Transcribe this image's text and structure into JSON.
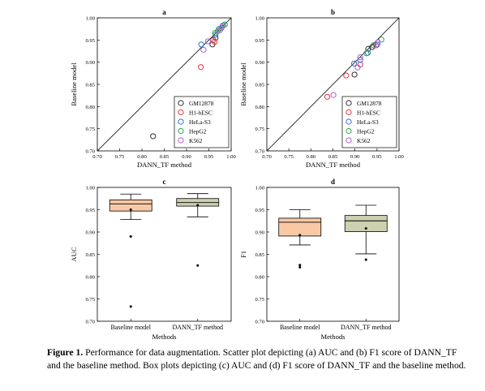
{
  "chart_data": [
    {
      "type": "scatter",
      "panel": "a",
      "xlabel": "DANN_TF method",
      "ylabel": "Baseline model",
      "xlim": [
        0.7,
        1.0
      ],
      "ylim": [
        0.7,
        1.0
      ],
      "ticks": [
        "0.70",
        "0.75",
        "0.80",
        "0.85",
        "0.90",
        "0.95",
        "1.00"
      ],
      "diagonal": true,
      "legend_position": "bottom-right",
      "series": [
        {
          "name": "GM12878",
          "color": "#303030",
          "points": [
            [
              0.825,
              0.733
            ],
            [
              0.958,
              0.94
            ],
            [
              0.965,
              0.955
            ]
          ]
        },
        {
          "name": "H1-hESC",
          "color": "#e8373b",
          "points": [
            [
              0.932,
              0.889
            ],
            [
              0.963,
              0.946
            ],
            [
              0.96,
              0.95
            ]
          ]
        },
        {
          "name": "HeLa-S3",
          "color": "#2f6fd6",
          "points": [
            [
              0.933,
              0.94
            ],
            [
              0.965,
              0.962
            ],
            [
              0.982,
              0.983
            ],
            [
              0.973,
              0.975
            ]
          ]
        },
        {
          "name": "HepG2",
          "color": "#2ea84a",
          "points": [
            [
              0.964,
              0.966
            ],
            [
              0.97,
              0.97
            ],
            [
              0.978,
              0.977
            ],
            [
              0.986,
              0.985
            ]
          ]
        },
        {
          "name": "K562",
          "color": "#b15ad9",
          "points": [
            [
              0.938,
              0.928
            ],
            [
              0.948,
              0.947
            ],
            [
              0.975,
              0.972
            ],
            [
              0.98,
              0.98
            ]
          ]
        }
      ]
    },
    {
      "type": "scatter",
      "panel": "b",
      "xlabel": "DANN_TF method",
      "ylabel": "Baseline model",
      "xlim": [
        0.7,
        1.0
      ],
      "ylim": [
        0.7,
        1.0
      ],
      "ticks": [
        "0.70",
        "0.75",
        "0.80",
        "0.85",
        "0.90",
        "0.95",
        "1.00"
      ],
      "diagonal": true,
      "legend_position": "bottom-right",
      "series": [
        {
          "name": "GM12878",
          "color": "#303030",
          "points": [
            [
              0.899,
              0.872
            ],
            [
              0.93,
              0.93
            ],
            [
              0.939,
              0.934
            ]
          ]
        },
        {
          "name": "H1-hESC",
          "color": "#e8373b",
          "points": [
            [
              0.837,
              0.822
            ],
            [
              0.88,
              0.87
            ],
            [
              0.912,
              0.895
            ],
            [
              0.948,
              0.938
            ]
          ]
        },
        {
          "name": "HeLa-S3",
          "color": "#2f6fd6",
          "points": [
            [
              0.898,
              0.897
            ],
            [
              0.912,
              0.905
            ],
            [
              0.929,
              0.921
            ],
            [
              0.951,
              0.94
            ]
          ]
        },
        {
          "name": "HepG2",
          "color": "#2ea84a",
          "points": [
            [
              0.926,
              0.92
            ],
            [
              0.942,
              0.938
            ],
            [
              0.96,
              0.951
            ]
          ]
        },
        {
          "name": "K562",
          "color": "#b15ad9",
          "points": [
            [
              0.851,
              0.826
            ],
            [
              0.906,
              0.888
            ],
            [
              0.912,
              0.911
            ],
            [
              0.952,
              0.945
            ]
          ]
        }
      ]
    },
    {
      "type": "box",
      "panel": "c",
      "xlabel": "Methods",
      "ylabel": "AUC",
      "ylim": [
        0.7,
        1.0
      ],
      "ticks": [
        "0.70",
        "0.75",
        "0.80",
        "0.85",
        "0.90",
        "0.95",
        "1.00"
      ],
      "categories": [
        "Baseline model",
        "DANN_TF method"
      ],
      "boxes": [
        {
          "color": "#f9c9a6",
          "q1": 0.947,
          "median": 0.963,
          "q3": 0.972,
          "whisker_low": 0.928,
          "whisker_high": 0.985,
          "mean": 0.95,
          "outliers": [
            0.89,
            0.733
          ]
        },
        {
          "color": "#cfd0b1",
          "q1": 0.958,
          "median": 0.966,
          "q3": 0.975,
          "whisker_low": 0.934,
          "whisker_high": 0.986,
          "mean": 0.96,
          "outliers": [
            0.825
          ]
        }
      ]
    },
    {
      "type": "box",
      "panel": "d",
      "xlabel": "Methods",
      "ylabel": "F1",
      "ylim": [
        0.7,
        1.0
      ],
      "ticks": [
        "0.70",
        "0.75",
        "0.80",
        "0.85",
        "0.90",
        "0.95",
        "1.00"
      ],
      "categories": [
        "Baseline model",
        "DANN_TF method"
      ],
      "boxes": [
        {
          "color": "#f9c9a6",
          "q1": 0.891,
          "median": 0.922,
          "q3": 0.931,
          "whisker_low": 0.871,
          "whisker_high": 0.95,
          "mean": 0.893,
          "outliers": [
            0.826,
            0.821
          ]
        },
        {
          "color": "#cfd0b1",
          "q1": 0.901,
          "median": 0.925,
          "q3": 0.937,
          "whisker_low": 0.851,
          "whisker_high": 0.96,
          "mean": 0.908,
          "outliers": [
            0.838
          ]
        }
      ]
    }
  ],
  "caption": {
    "label": "Figure 1.",
    "text": " Performance for data augmentation. Scatter plot depicting (a) AUC and (b) F1 score of DANN_TF and the baseline method. Box plots depicting (c) AUC and (d) F1 score of DANN_TF and the baseline method."
  }
}
